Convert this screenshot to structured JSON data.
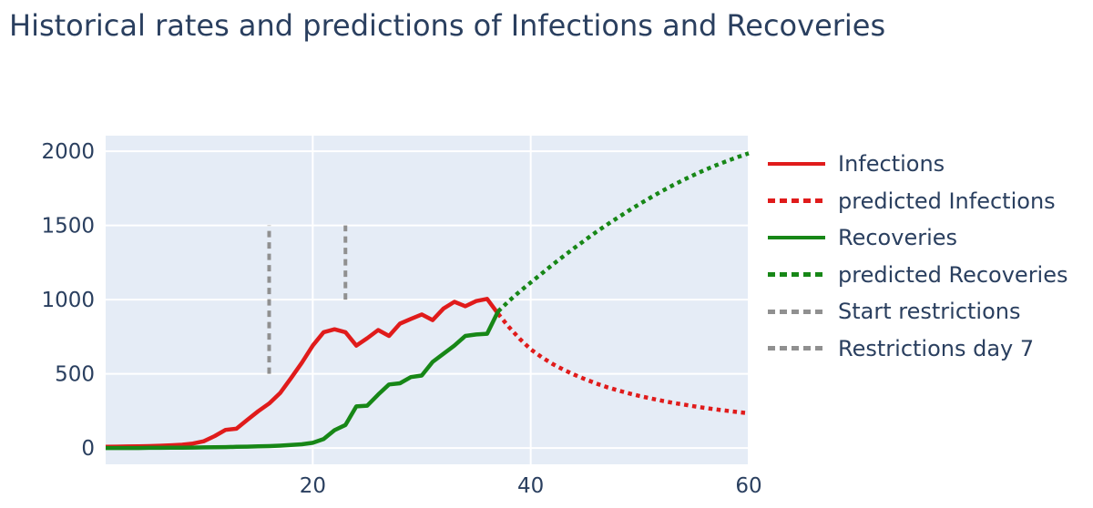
{
  "title": "Historical rates and predictions of Infections and Recoveries",
  "colors": {
    "infections_red": "#e01b1b",
    "recoveries_green": "#178717",
    "restrictions_gray": "#909090",
    "text": "#2a3f5f",
    "plot_background": "#e5ecf6",
    "grid": "#ffffff"
  },
  "chart_data": {
    "type": "line",
    "title": "Historical rates and predictions of Infections and Recoveries",
    "xlabel": "",
    "ylabel": "",
    "x_ticks": [
      20,
      40,
      60
    ],
    "y_ticks": [
      0,
      500,
      1000,
      1500,
      2000
    ],
    "x_range": [
      1,
      60
    ],
    "y_range": [
      -110,
      2105
    ],
    "grid": true,
    "legend_position": "right",
    "plot_bg": "#e5ecf6",
    "grid_color": "#ffffff",
    "series": [
      {
        "name": "Infections",
        "color": "#e01b1b",
        "dash": "solid",
        "x": [
          1,
          2,
          3,
          4,
          5,
          6,
          7,
          8,
          9,
          10,
          11,
          12,
          13,
          14,
          15,
          16,
          17,
          18,
          19,
          20,
          21,
          22,
          23,
          24,
          25,
          26,
          27,
          28,
          29,
          30,
          31,
          32,
          33,
          34,
          35,
          36,
          37
        ],
        "y": [
          8,
          9,
          10,
          11,
          13,
          15,
          18,
          22,
          30,
          45,
          80,
          122,
          130,
          190,
          248,
          300,
          370,
          470,
          575,
          690,
          780,
          800,
          780,
          690,
          740,
          795,
          755,
          838,
          870,
          900,
          862,
          940,
          985,
          955,
          990,
          1005,
          905
        ]
      },
      {
        "name": "predicted Infections",
        "color": "#e01b1b",
        "dash": "dot",
        "x": [
          37,
          38,
          39,
          40,
          41,
          42,
          43,
          44,
          45,
          46,
          47,
          48,
          49,
          50,
          51,
          52,
          53,
          54,
          55,
          56,
          57,
          58,
          59,
          60
        ],
        "y": [
          905,
          815,
          735,
          665,
          612,
          567,
          528,
          494,
          463,
          435,
          410,
          388,
          368,
          350,
          334,
          319,
          305,
          293,
          281,
          270,
          260,
          251,
          242,
          234
        ]
      },
      {
        "name": "Recoveries",
        "color": "#178717",
        "dash": "solid",
        "x": [
          1,
          2,
          3,
          4,
          5,
          6,
          7,
          8,
          9,
          10,
          11,
          12,
          13,
          14,
          15,
          16,
          17,
          18,
          19,
          20,
          21,
          22,
          23,
          24,
          25,
          26,
          27,
          28,
          29,
          30,
          31,
          32,
          33,
          34,
          35,
          36,
          37
        ],
        "y": [
          0,
          0,
          0,
          0,
          1,
          1,
          2,
          2,
          3,
          4,
          5,
          6,
          8,
          9,
          11,
          13,
          16,
          20,
          25,
          35,
          60,
          120,
          155,
          280,
          285,
          360,
          428,
          436,
          478,
          488,
          580,
          635,
          690,
          755,
          765,
          770,
          920
        ]
      },
      {
        "name": "predicted Recoveries",
        "color": "#178717",
        "dash": "dot",
        "x": [
          37,
          38,
          39,
          40,
          41,
          42,
          43,
          44,
          45,
          46,
          47,
          48,
          49,
          50,
          51,
          52,
          53,
          54,
          55,
          56,
          57,
          58,
          59,
          60
        ],
        "y": [
          920,
          990,
          1055,
          1115,
          1175,
          1235,
          1292,
          1348,
          1402,
          1455,
          1505,
          1553,
          1600,
          1645,
          1688,
          1730,
          1769,
          1806,
          1841,
          1874,
          1905,
          1934,
          1961,
          1986
        ]
      },
      {
        "name": "Start restrictions",
        "color": "#909090",
        "dash": "dash",
        "type": "vline",
        "x_value": 16,
        "y0": 500,
        "y1": 1500
      },
      {
        "name": "Restrictions day 7",
        "color": "#909090",
        "dash": "dash",
        "type": "vline",
        "x_value": 23,
        "y0": 1000,
        "y1": 1500
      }
    ]
  }
}
